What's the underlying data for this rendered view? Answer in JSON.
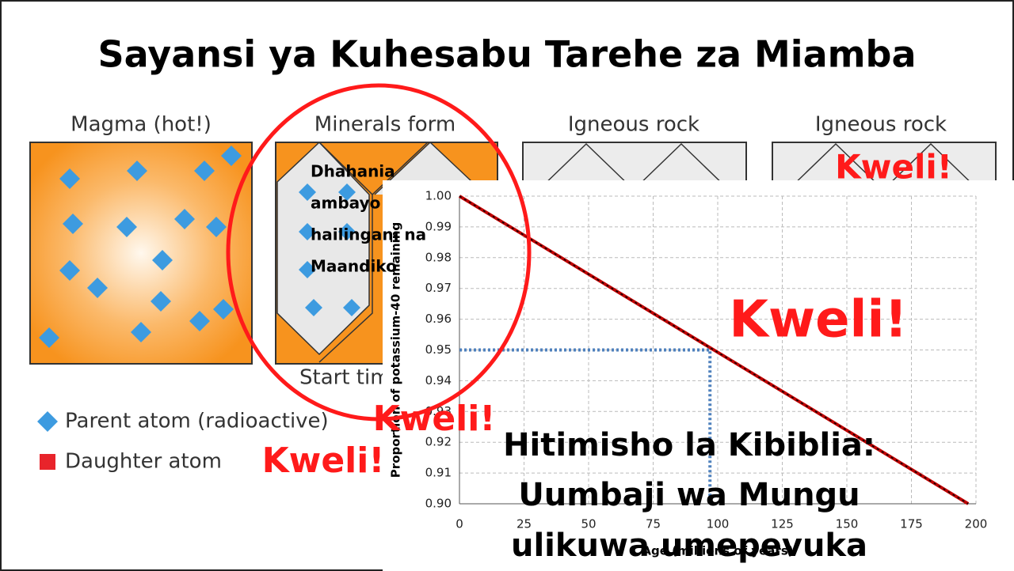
{
  "title": "Sayansi ya Kuhesabu Tarehe za Miamba",
  "panels": [
    "Magma (hot!)",
    "Minerals form",
    "Igneous rock",
    "Igneous rock"
  ],
  "start_label": "Start time",
  "legend": [
    "Parent atom (radioactive)",
    "Daughter atom"
  ],
  "circle_note": [
    "Dhahania",
    "ambayo",
    "hailingani na",
    "Maandiko"
  ],
  "badges": [
    "Kweli!",
    "Kweli!",
    "Kweli!",
    "Kweli!"
  ],
  "conclusion": [
    "Hitimisho la Kibiblia:",
    "Uumbaji wa Mungu",
    "ulikuwa umepevuka"
  ],
  "chart_data": {
    "type": "line",
    "xlabel": "Age (millions of years)",
    "ylabel": "Proportion of potassium-40 remaining",
    "xlim": [
      0,
      200
    ],
    "xticks": [
      0,
      25,
      50,
      75,
      100,
      125,
      150,
      175,
      200
    ],
    "ylim": [
      0.9,
      1.0
    ],
    "yticks": [
      {
        "value": 0.9,
        "label": "0.90"
      },
      0.91,
      0.92,
      0.93,
      0.94,
      0.95,
      0.96,
      0.97,
      0.98,
      0.99,
      {
        "value": 1.0,
        "label": "1.00"
      }
    ],
    "grid": true,
    "series": [
      {
        "color": "#c00000",
        "x": [
          0,
          197
        ],
        "values": [
          1.0,
          0.9
        ]
      },
      {
        "color": "#4f81bd",
        "dash": true,
        "x": [
          0,
          97,
          97
        ],
        "values": [
          0.95,
          0.95,
          0.9
        ]
      }
    ]
  }
}
